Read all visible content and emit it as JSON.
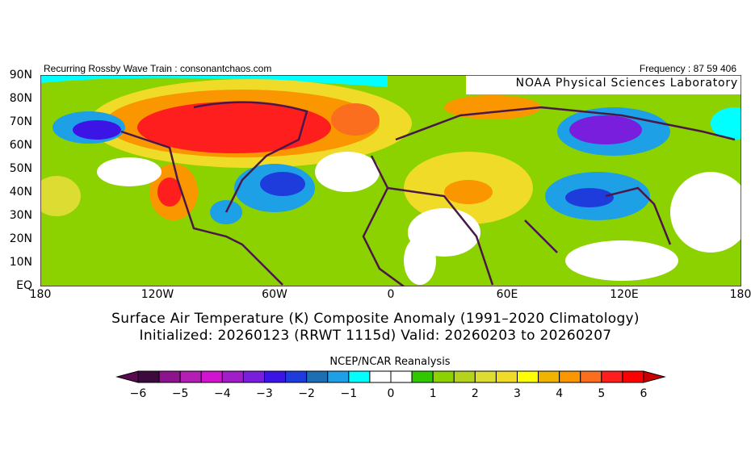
{
  "header": {
    "left": "Recurring Rossby Wave Train : consonantchaos.com",
    "right": "Frequency : 87 59 406",
    "credit": "NOAA Physical Sciences Laboratory"
  },
  "map": {
    "lat_labels": [
      "90N",
      "80N",
      "70N",
      "60N",
      "50N",
      "40N",
      "30N",
      "20N",
      "10N",
      "EQ"
    ],
    "lon_labels": [
      "180",
      "120W",
      "60W",
      "0",
      "60E",
      "120E",
      "180"
    ]
  },
  "title": {
    "line1": "Surface Air Temperature (K) Composite Anomaly (1991–2020 Climatology)",
    "line2": "Initialized: 20260123 (RRWT 1115d) Valid: 20260203 to 20260207"
  },
  "colorbar": {
    "label": "NCEP/NCAR Reanalysis",
    "tick_labels": [
      "−6",
      "−5",
      "−4",
      "−3",
      "−2",
      "−1",
      "0",
      "1",
      "2",
      "3",
      "4",
      "5",
      "6"
    ],
    "colors": [
      "#3c0a3c",
      "#8c148c",
      "#b41eb4",
      "#d214d2",
      "#a01ec8",
      "#781edc",
      "#3c14e6",
      "#1e3cdc",
      "#1e6eb4",
      "#1ea0e6",
      "#00ffff",
      "#ffffff",
      "#ffffff",
      "#32c800",
      "#8cd200",
      "#b4d21e",
      "#dcdc32",
      "#f0dc28",
      "#ffff00",
      "#f0b400",
      "#fa9600",
      "#fa6e1e",
      "#ff1e1e",
      "#ff0000"
    ],
    "min_color": "#5a0a50",
    "max_color": "#c80000"
  }
}
